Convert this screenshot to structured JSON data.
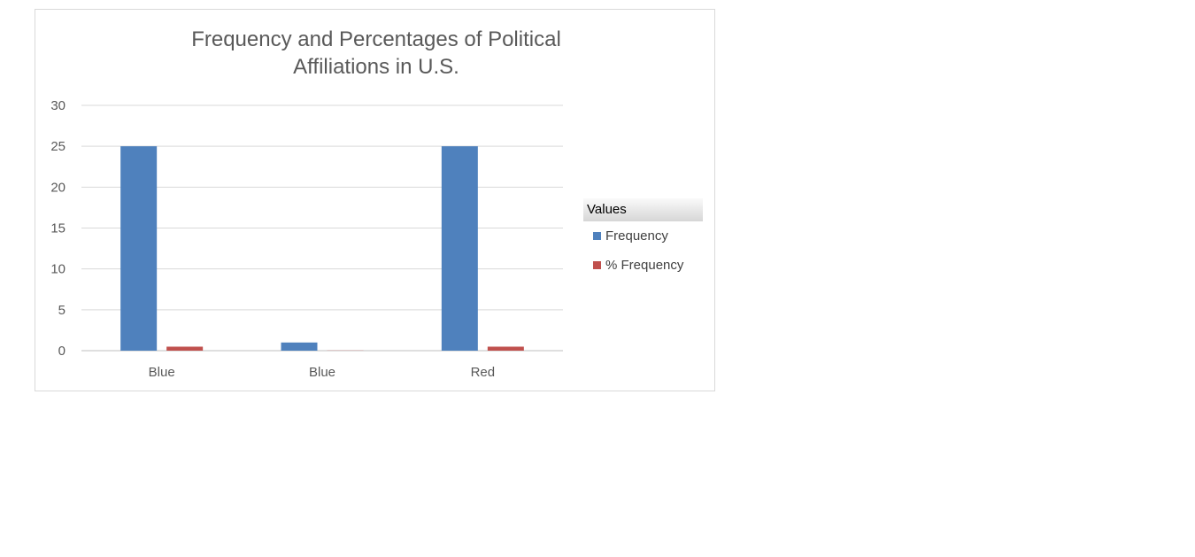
{
  "chart_data": {
    "type": "bar",
    "title": "Frequency and Percentages of Political\nAffiliations in U.S.",
    "categories": [
      "Blue",
      "Blue",
      "Red"
    ],
    "series": [
      {
        "name": "Frequency",
        "values": [
          25,
          1,
          25
        ],
        "color": "#4f81bd"
      },
      {
        "name": "% Frequency",
        "values": [
          0.49,
          0.02,
          0.49
        ],
        "color": "#c0504d"
      }
    ],
    "ylim": [
      0,
      30
    ],
    "yticks": [
      0,
      5,
      10,
      15,
      20,
      25,
      30
    ],
    "grid": true,
    "legend": {
      "title": "Values",
      "position": "right"
    }
  }
}
